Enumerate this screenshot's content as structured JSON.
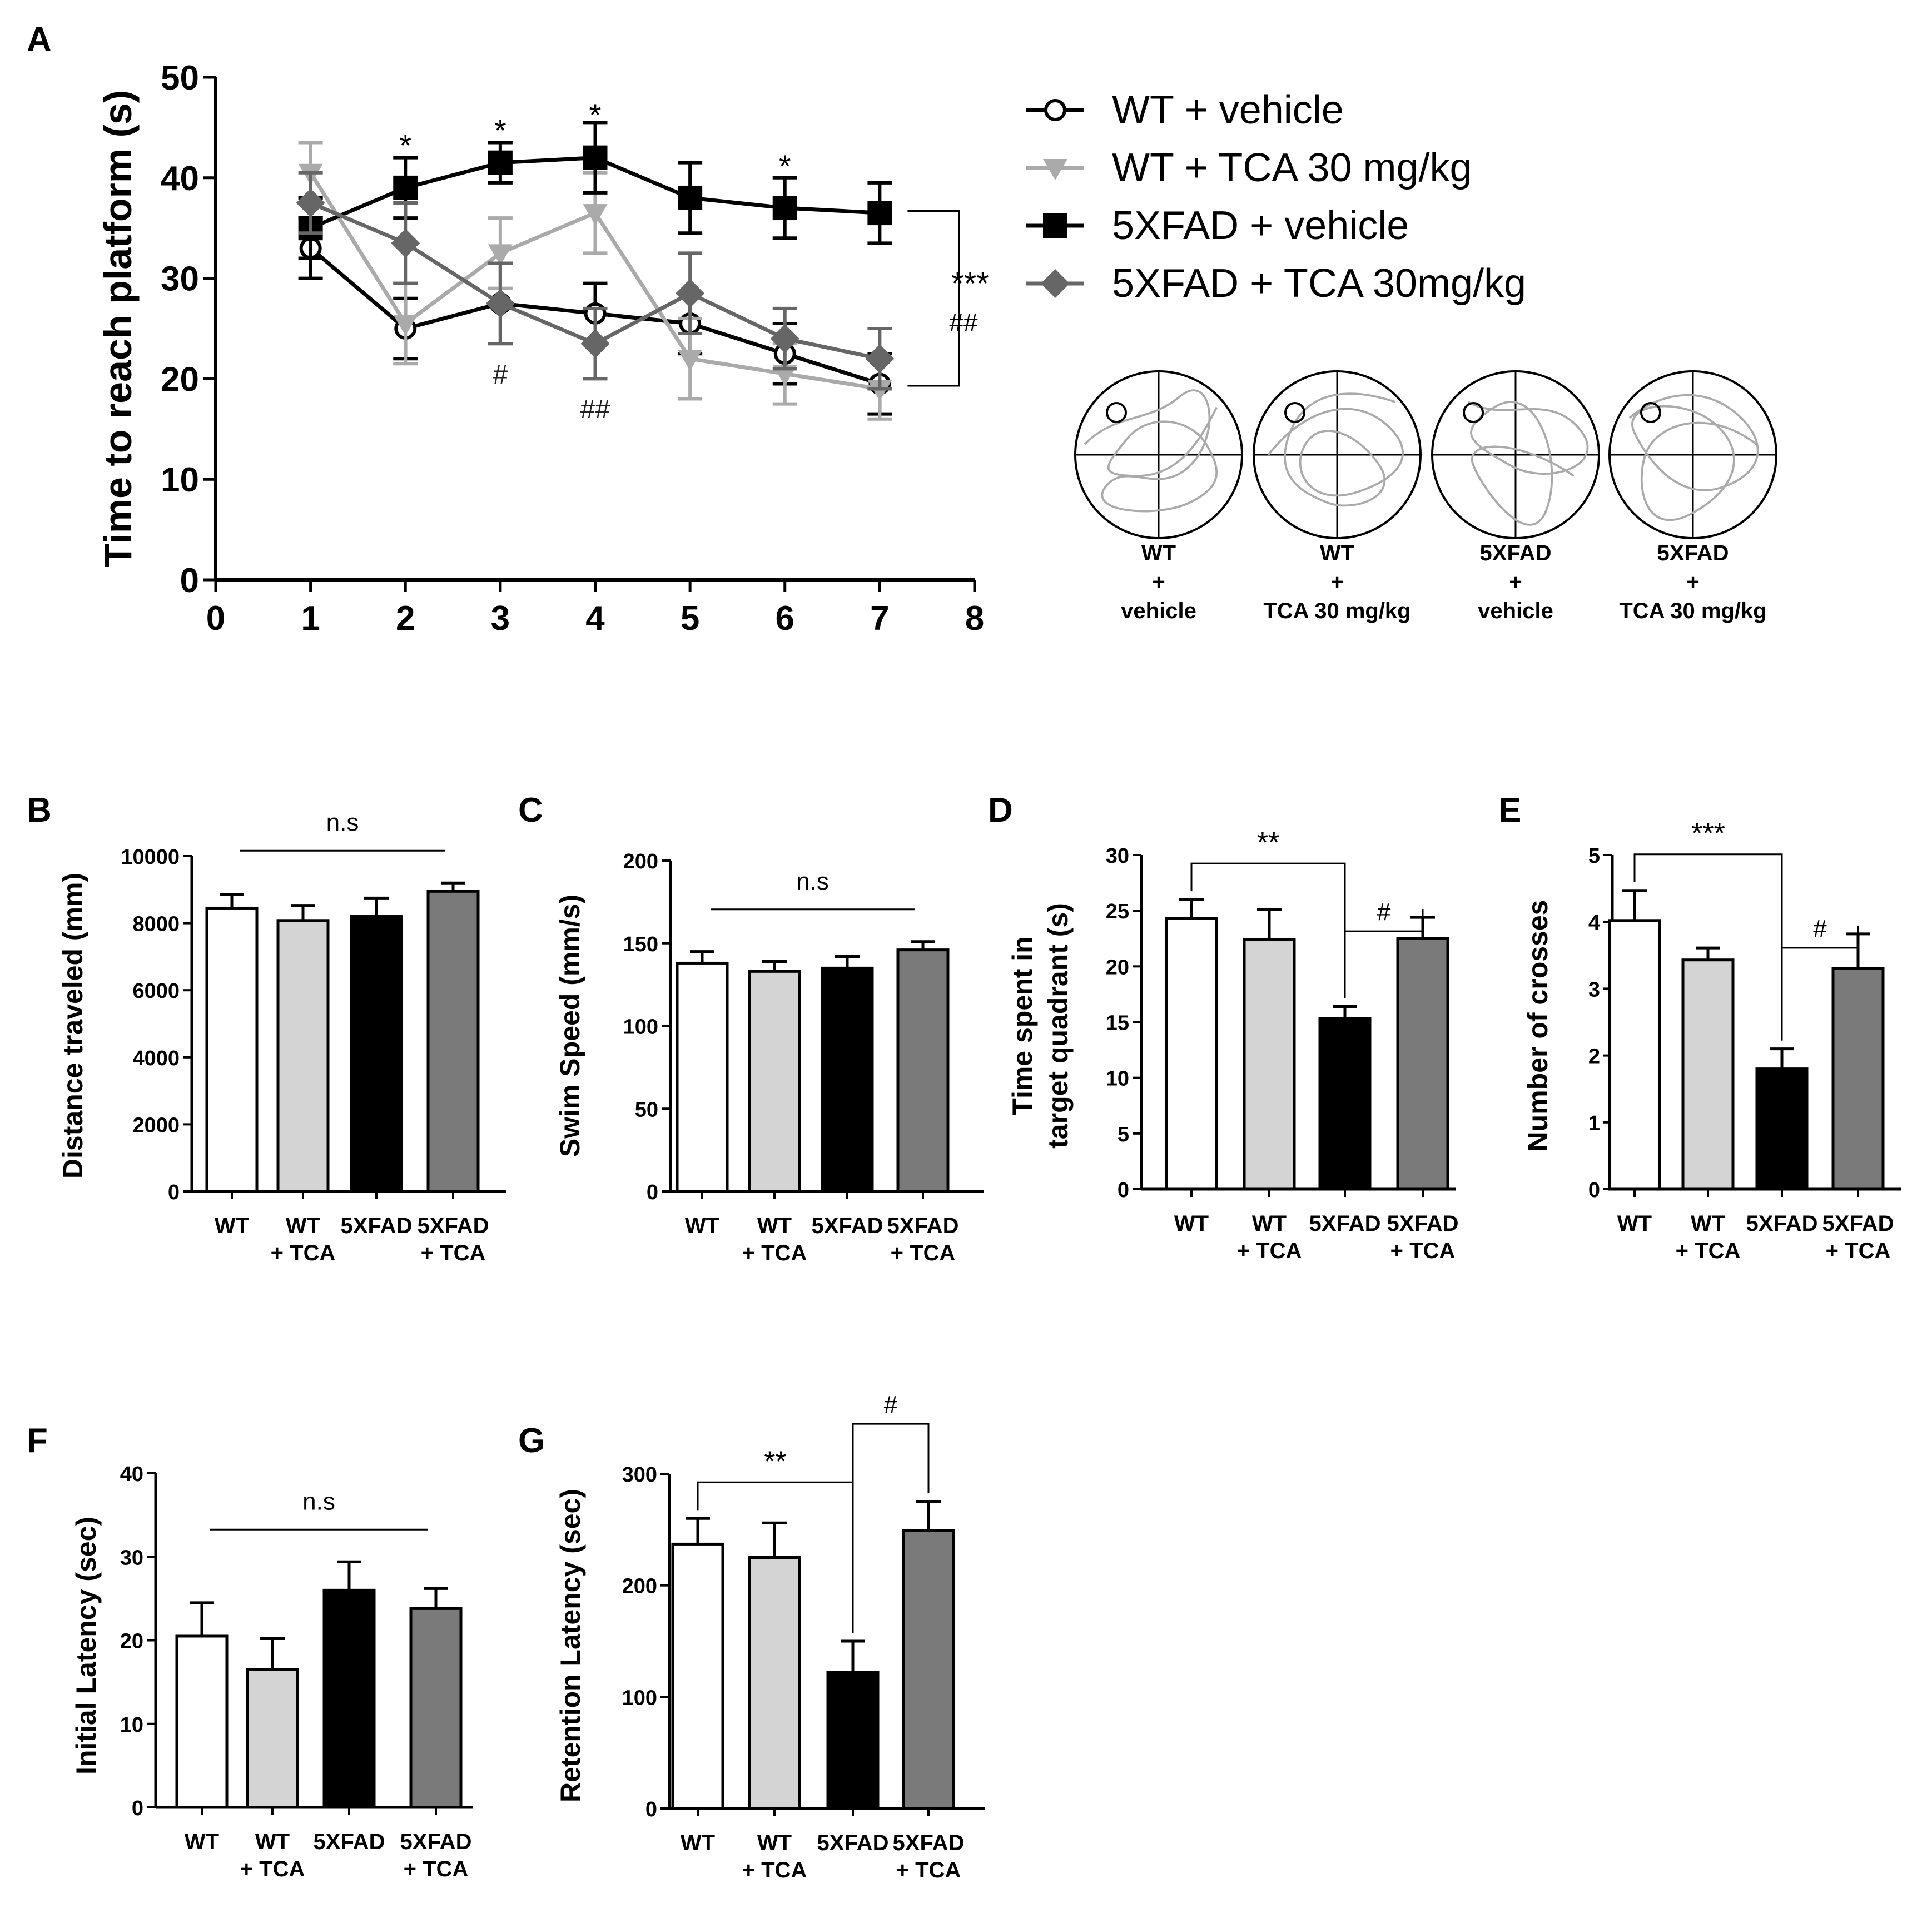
{
  "chart_data": [
    {
      "panel": "A",
      "type": "line",
      "ylabel": "Time to reach platform (s)",
      "xlabel": "",
      "xlim": [
        0,
        8
      ],
      "ylim": [
        0,
        50
      ],
      "xticks": [
        0,
        1,
        2,
        3,
        4,
        5,
        6,
        7,
        8
      ],
      "yticks": [
        0,
        10,
        20,
        30,
        40,
        50
      ],
      "series": [
        {
          "name": "WT + vehicle",
          "color": "#000000",
          "marker": "open-circle",
          "x": [
            1,
            2,
            3,
            4,
            5,
            6,
            7
          ],
          "values": [
            33,
            25,
            27.5,
            26.5,
            25.5,
            22.5,
            19.5
          ],
          "errors": [
            3,
            3,
            4,
            3,
            3,
            3,
            3
          ]
        },
        {
          "name": "WT + TCA 30 mg/kg",
          "color": "#aaaaaa",
          "marker": "triangle-down",
          "x": [
            1,
            2,
            3,
            4,
            5,
            6,
            7
          ],
          "values": [
            40.5,
            25.5,
            32.5,
            36.5,
            22,
            20.5,
            19
          ],
          "errors": [
            3,
            4,
            3.5,
            4,
            4,
            3,
            3
          ]
        },
        {
          "name": "5XFAD + vehicle",
          "color": "#000000",
          "marker": "square",
          "x": [
            1,
            2,
            3,
            4,
            5,
            6,
            7
          ],
          "values": [
            35,
            39,
            41.5,
            42,
            38,
            37,
            36.5
          ],
          "errors": [
            3,
            3,
            2,
            3.5,
            3.5,
            3,
            3
          ]
        },
        {
          "name": "5XFAD + TCA 30mg/kg",
          "color": "#666666",
          "marker": "diamond",
          "x": [
            1,
            2,
            3,
            4,
            5,
            6,
            7
          ],
          "values": [
            37.5,
            33.5,
            27.5,
            23.5,
            28.5,
            24,
            22
          ],
          "errors": [
            3,
            4,
            4,
            3.5,
            4,
            3,
            3
          ]
        }
      ],
      "annotations": [
        {
          "text": "*",
          "x": 2,
          "pos": "above"
        },
        {
          "text": "*",
          "x": 3,
          "pos": "above"
        },
        {
          "text": "*",
          "x": 4,
          "pos": "above"
        },
        {
          "text": "*",
          "x": 6,
          "pos": "above"
        },
        {
          "text": "#",
          "x": 3,
          "pos": "below"
        },
        {
          "text": "##",
          "x": 4,
          "pos": "below"
        },
        {
          "text": "***",
          "pos": "bracket"
        },
        {
          "text": "##",
          "pos": "bracket"
        }
      ],
      "trace_labels": [
        [
          "WT",
          "+",
          "vehicle"
        ],
        [
          "WT",
          "+",
          "TCA  30 mg/kg"
        ],
        [
          "5XFAD",
          "+",
          "vehicle"
        ],
        [
          "5XFAD",
          "+",
          "TCA  30 mg/kg"
        ]
      ]
    },
    {
      "panel": "B",
      "type": "bar",
      "ylabel": "Distance traveled (mm)",
      "categories": [
        [
          "WT"
        ],
        [
          "WT",
          "+ TCA"
        ],
        [
          "5XFAD"
        ],
        [
          "5XFAD",
          "+ TCA"
        ]
      ],
      "values": [
        8450,
        8080,
        8200,
        8950
      ],
      "errors": [
        400,
        450,
        550,
        250
      ],
      "colors": [
        "#ffffff",
        "#d4d4d4",
        "#000000",
        "#7a7a7a"
      ],
      "ylim": [
        0,
        10000
      ],
      "yticks": [
        0,
        2000,
        4000,
        6000,
        8000,
        10000
      ],
      "annotations": [
        {
          "text": "n.s",
          "type": "line"
        }
      ]
    },
    {
      "panel": "C",
      "type": "bar",
      "ylabel": "Swim Speed (mm/s)",
      "categories": [
        [
          "WT"
        ],
        [
          "WT",
          "+ TCA"
        ],
        [
          "5XFAD"
        ],
        [
          "5XFAD",
          "+ TCA"
        ]
      ],
      "values": [
        138,
        133,
        135,
        146
      ],
      "errors": [
        7,
        6,
        7,
        5
      ],
      "colors": [
        "#ffffff",
        "#d4d4d4",
        "#000000",
        "#7a7a7a"
      ],
      "ylim": [
        0,
        200
      ],
      "yticks": [
        0,
        50,
        100,
        150,
        200
      ],
      "annotations": [
        {
          "text": "n.s",
          "type": "line"
        }
      ]
    },
    {
      "panel": "D",
      "type": "bar",
      "ylabel": [
        "Time spent in",
        "target quadrant (s)"
      ],
      "categories": [
        [
          "WT"
        ],
        [
          "WT",
          "+ TCA"
        ],
        [
          "5XFAD"
        ],
        [
          "5XFAD",
          "+ TCA"
        ]
      ],
      "values": [
        24.3,
        22.4,
        15.3,
        22.5
      ],
      "errors": [
        1.7,
        2.7,
        1.1,
        1.9
      ],
      "colors": [
        "#ffffff",
        "#d4d4d4",
        "#000000",
        "#7a7a7a"
      ],
      "ylim": [
        0,
        30
      ],
      "yticks": [
        0,
        5,
        10,
        15,
        20,
        25,
        30
      ],
      "annotations": [
        {
          "text": "**",
          "from": 0,
          "to": 2
        },
        {
          "text": "#",
          "from": 2,
          "to": 3
        }
      ]
    },
    {
      "panel": "E",
      "type": "bar",
      "ylabel": "Number of crosses",
      "categories": [
        [
          "WT"
        ],
        [
          "WT",
          "+ TCA"
        ],
        [
          "5XFAD"
        ],
        [
          "5XFAD",
          "+ TCA"
        ]
      ],
      "values": [
        4.02,
        3.43,
        1.8,
        3.3
      ],
      "errors": [
        0.45,
        0.18,
        0.3,
        0.52
      ],
      "colors": [
        "#ffffff",
        "#d4d4d4",
        "#000000",
        "#7a7a7a"
      ],
      "ylim": [
        0,
        5
      ],
      "yticks": [
        0,
        1,
        2,
        3,
        4,
        5
      ],
      "annotations": [
        {
          "text": "***",
          "from": 0,
          "to": 2
        },
        {
          "text": "#",
          "from": 2,
          "to": 3
        }
      ]
    },
    {
      "panel": "F",
      "type": "bar",
      "ylabel": "Initial Latency (sec)",
      "categories": [
        [
          "WT"
        ],
        [
          "WT",
          "+ TCA"
        ],
        [
          "5XFAD"
        ],
        [
          "5XFAD",
          "+ TCA"
        ]
      ],
      "values": [
        20.5,
        16.5,
        26,
        23.8
      ],
      "errors": [
        4,
        3.7,
        3.4,
        2.4
      ],
      "colors": [
        "#ffffff",
        "#d4d4d4",
        "#000000",
        "#7a7a7a"
      ],
      "ylim": [
        0,
        40
      ],
      "yticks": [
        0,
        10,
        20,
        30,
        40
      ],
      "annotations": [
        {
          "text": "n.s",
          "type": "line"
        }
      ]
    },
    {
      "panel": "G",
      "type": "bar",
      "ylabel": "Retention Latency (sec)",
      "categories": [
        [
          "WT"
        ],
        [
          "WT",
          "+ TCA"
        ],
        [
          "5XFAD"
        ],
        [
          "5XFAD",
          "+ TCA"
        ]
      ],
      "values": [
        237,
        225,
        122,
        249
      ],
      "errors": [
        23,
        31,
        28,
        26
      ],
      "colors": [
        "#ffffff",
        "#d4d4d4",
        "#000000",
        "#7a7a7a"
      ],
      "ylim": [
        0,
        300
      ],
      "yticks": [
        0,
        100,
        200,
        300
      ],
      "annotations": [
        {
          "text": "**",
          "from": 0,
          "to": 2
        },
        {
          "text": "#",
          "from": 2,
          "to": 3
        }
      ]
    }
  ]
}
